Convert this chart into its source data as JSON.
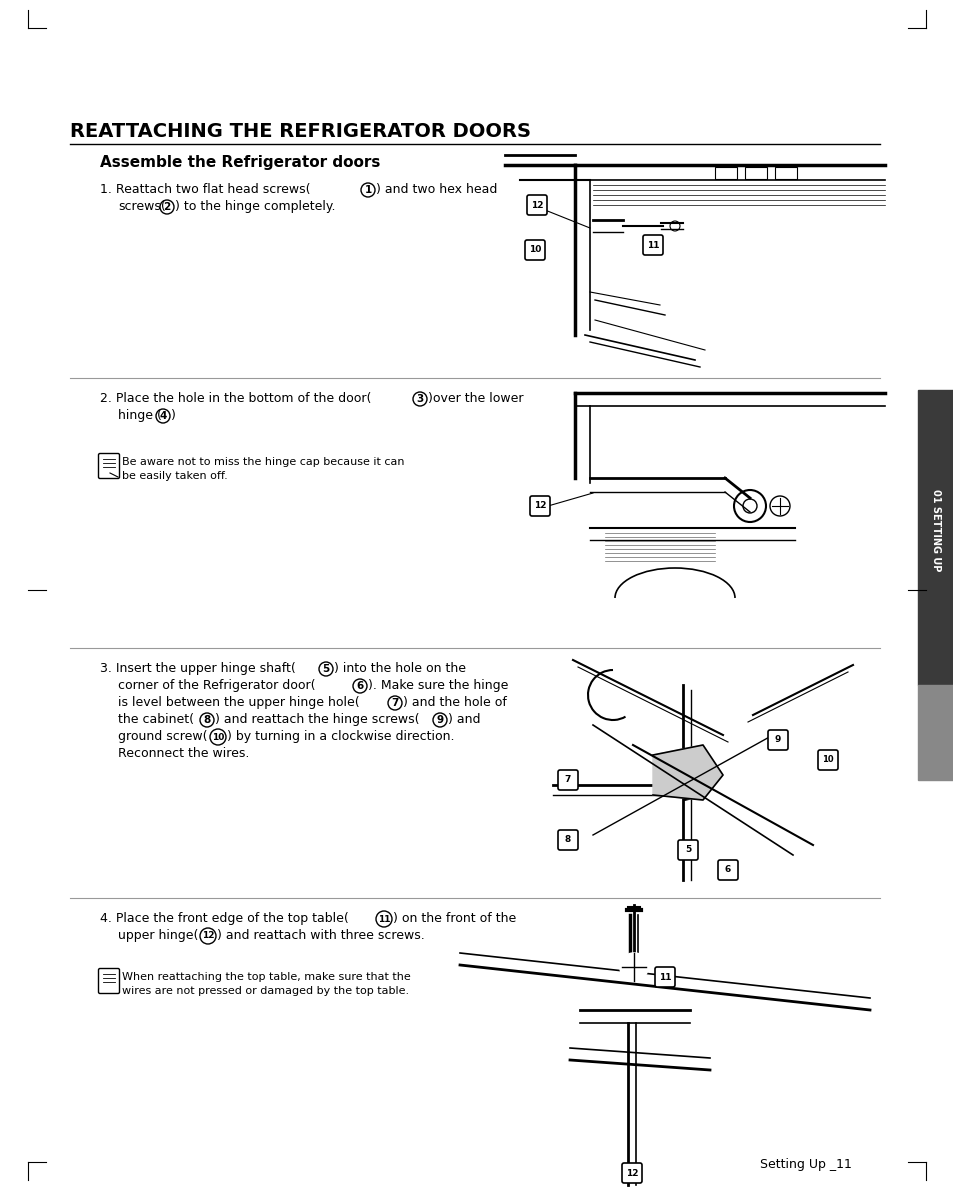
{
  "title": "REATTACHING THE REFRIGERATOR DOORS",
  "subtitle": "Assemble the Refrigerator doors",
  "background_color": "#ffffff",
  "text_color": "#000000",
  "page_number": "Setting Up _11",
  "sidebar_label": "01 SETTING UP",
  "step1_line1": "1. Reattach two flat head screws(",
  "step1_num1": "1",
  "step1_line1b": ") and two hex head",
  "step1_line2": "   screws(",
  "step1_num2": "2",
  "step1_line2b": ") to the hinge completely.",
  "step2_line1": "2. Place the hole in the bottom of the door(",
  "step2_num3": "3",
  "step2_line1b": ")over the lower",
  "step2_line2": "   hinge (",
  "step2_num4": "4",
  "step2_line2b": ")",
  "step2_note": "Be aware not to miss the hinge cap because it can\nbe easily taken off.",
  "step3_line1": "3. Insert the upper hinge shaft(",
  "step3_num5": "5",
  "step3_line1b": ") into the hole on the",
  "step3_line2": "   corner of the Refrigerator door(",
  "step3_num6": "6",
  "step3_line2b": "). Make sure the hinge",
  "step3_line3": "   is level between the upper hinge hole(",
  "step3_num7": "7",
  "step3_line3b": ") and the hole of",
  "step3_line4": "   the cabinet(",
  "step3_num8": "8",
  "step3_line4b": ") and reattach the hinge screws(",
  "step3_num9": "9",
  "step3_line4c": ") and",
  "step3_line5": "   ground screw(",
  "step3_num10": "10",
  "step3_line5b": ") by turning in a clockwise direction.",
  "step3_line6": "   Reconnect the wires.",
  "step4_line1": "4. Place the front edge of the top table(",
  "step4_num11": "11",
  "step4_line1b": ") on the front of the",
  "step4_line2": "   upper hinge(",
  "step4_num12": "12",
  "step4_line2b": ") and reattach with three screws.",
  "step4_note": "When reattaching the top table, make sure that the\nwires are not pressed or damaged by the top table.",
  "sep_color": "#999999",
  "sidebar_dark": "#3a3a3a",
  "sidebar_light": "#888888"
}
